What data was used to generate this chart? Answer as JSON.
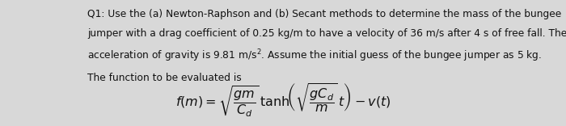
{
  "background_color": "#d8d8d8",
  "text_color": "#111111",
  "line1": "Q1: Use the (a) Newton-Raphson and (b) Secant methods to determine the mass of the bungee",
  "line2": "jumper with a drag coefficient of 0.25 kg/m to have a velocity of 36 m/s after 4 s of free fall. The",
  "line3": "acceleration of gravity is 9.81 m/s$^2$. Assume the initial guess of the bungee jumper as 5 kg.",
  "line4": "The function to be evaluated is",
  "formula": "$f(m) = \\sqrt{\\dfrac{gm}{C_d}}\\,\\mathrm{tanh}\\!\\left(\\sqrt{\\dfrac{gC_d}{m}}\\,t\\right) - v(t)$",
  "fig_width": 7.0,
  "fig_height": 1.56,
  "dpi": 100,
  "font_size_text": 8.8,
  "font_size_formula": 11.5
}
